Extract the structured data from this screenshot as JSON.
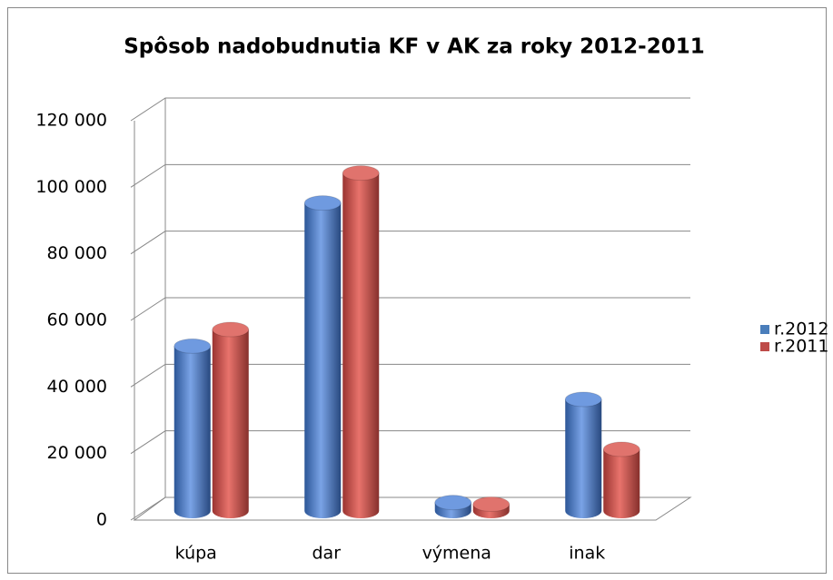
{
  "chart_data": {
    "type": "bar3d",
    "title": "Spôsob nadobudnutia  KF v AK za roky 2012-2011",
    "categories": [
      "kúpa",
      "dar",
      "výmena",
      "inak"
    ],
    "series": [
      {
        "name": "r.2012",
        "color": "#4a7ebb",
        "values": [
          49000,
          92000,
          2000,
          33000
        ]
      },
      {
        "name": "r.2011",
        "color": "#be4b48",
        "values": [
          54000,
          101000,
          1500,
          18000
        ]
      }
    ],
    "ylim": [
      0,
      120000
    ],
    "yticks": [
      0,
      {
        "value": 20000,
        "label": "20 000"
      },
      {
        "value": 40000,
        "label": "40 000"
      },
      {
        "value": 60000,
        "label": "60 000"
      },
      {
        "value": 80000,
        "label": "80 000"
      },
      {
        "value": 100000,
        "label": "100 000"
      },
      {
        "value": 120000,
        "label": "120 000"
      }
    ],
    "grid": true,
    "legend": "right"
  }
}
